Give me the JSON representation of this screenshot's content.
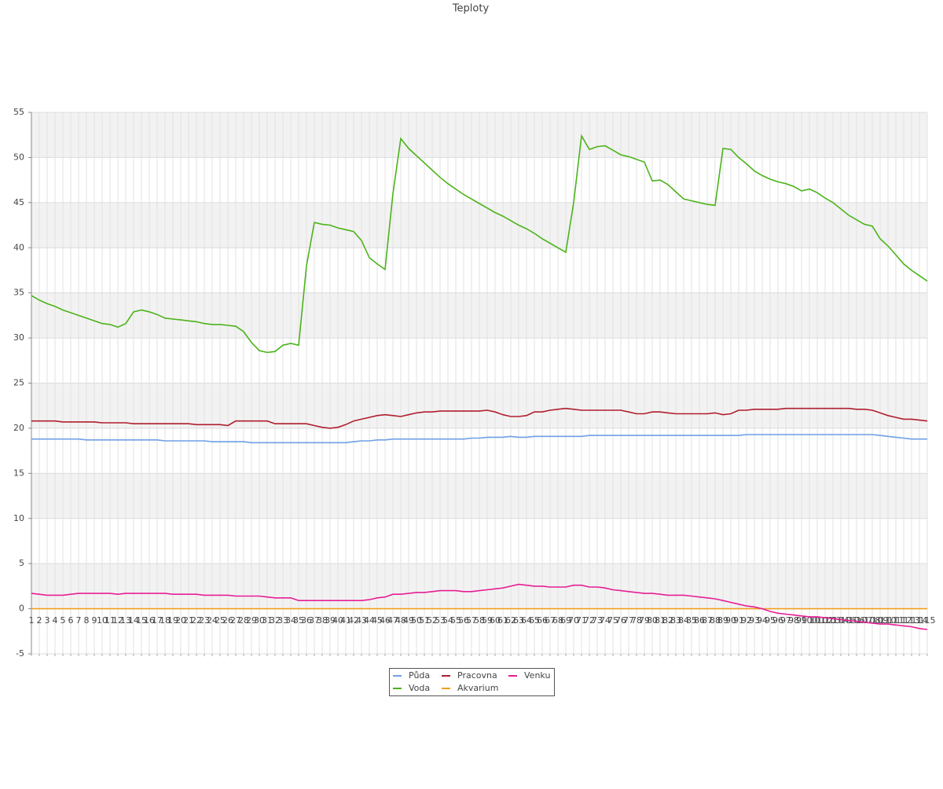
{
  "chart_data": {
    "type": "line",
    "title": "Teploty",
    "categories": [
      "1",
      "2",
      "3",
      "4",
      "5",
      "6",
      "7",
      "8",
      "9",
      "10",
      "11",
      "12",
      "13",
      "14",
      "15",
      "16",
      "17",
      "18",
      "19",
      "20",
      "21",
      "22",
      "23",
      "24",
      "25",
      "26",
      "27",
      "28",
      "29",
      "30",
      "31",
      "32",
      "33",
      "34",
      "35",
      "36",
      "37",
      "38",
      "39",
      "40",
      "41",
      "42",
      "43",
      "44",
      "45",
      "46",
      "47",
      "48",
      "49",
      "50",
      "51",
      "52",
      "53",
      "54",
      "55",
      "56",
      "57",
      "58",
      "59",
      "60",
      "61",
      "62",
      "63",
      "64",
      "65",
      "66",
      "67",
      "68",
      "69",
      "70",
      "71",
      "72",
      "73",
      "74",
      "75",
      "76",
      "77",
      "78",
      "79",
      "80",
      "81",
      "82",
      "83",
      "84",
      "85",
      "86",
      "87",
      "88",
      "89",
      "90",
      "91",
      "92",
      "93",
      "94",
      "95",
      "96",
      "97",
      "98",
      "99",
      "100",
      "101",
      "102",
      "103",
      "104",
      "105",
      "106",
      "107",
      "108",
      "109",
      "110",
      "111",
      "112",
      "113",
      "114",
      "115"
    ],
    "series": [
      {
        "name": "Půda",
        "color": "#6f9fe6",
        "values": [
          18.8,
          18.8,
          18.8,
          18.8,
          18.8,
          18.8,
          18.8,
          18.7,
          18.7,
          18.7,
          18.7,
          18.7,
          18.7,
          18.7,
          18.7,
          18.7,
          18.7,
          18.6,
          18.6,
          18.6,
          18.6,
          18.6,
          18.6,
          18.5,
          18.5,
          18.5,
          18.5,
          18.5,
          18.4,
          18.4,
          18.4,
          18.4,
          18.4,
          18.4,
          18.4,
          18.4,
          18.4,
          18.4,
          18.4,
          18.4,
          18.4,
          18.5,
          18.6,
          18.6,
          18.7,
          18.7,
          18.8,
          18.8,
          18.8,
          18.8,
          18.8,
          18.8,
          18.8,
          18.8,
          18.8,
          18.8,
          18.9,
          18.9,
          19.0,
          19.0,
          19.0,
          19.1,
          19.0,
          19.0,
          19.1,
          19.1,
          19.1,
          19.1,
          19.1,
          19.1,
          19.1,
          19.2,
          19.2,
          19.2,
          19.2,
          19.2,
          19.2,
          19.2,
          19.2,
          19.2,
          19.2,
          19.2,
          19.2,
          19.2,
          19.2,
          19.2,
          19.2,
          19.2,
          19.2,
          19.2,
          19.2,
          19.3,
          19.3,
          19.3,
          19.3,
          19.3,
          19.3,
          19.3,
          19.3,
          19.3,
          19.3,
          19.3,
          19.3,
          19.3,
          19.3,
          19.3,
          19.3,
          19.3,
          19.2,
          19.1,
          19.0,
          18.9,
          18.8,
          18.8,
          18.8
        ]
      },
      {
        "name": "Voda",
        "color": "#4cb31a",
        "values": [
          34.7,
          34.2,
          33.8,
          33.5,
          33.1,
          32.8,
          32.5,
          32.2,
          31.9,
          31.6,
          31.5,
          31.2,
          31.6,
          32.9,
          33.1,
          32.9,
          32.6,
          32.2,
          32.1,
          32.0,
          31.9,
          31.8,
          31.6,
          31.5,
          31.5,
          31.4,
          31.3,
          30.7,
          29.5,
          28.6,
          28.4,
          28.5,
          29.2,
          29.4,
          29.2,
          38,
          42.8,
          42.6,
          42.5,
          42.2,
          42.0,
          41.8,
          40.8,
          38.9,
          38.2,
          37.6,
          46,
          52.1,
          51,
          50.2,
          49.4,
          48.6,
          47.8,
          47.1,
          46.5,
          45.9,
          45.4,
          44.9,
          44.4,
          43.9,
          43.5,
          43.0,
          42.5,
          42.1,
          41.6,
          41.0,
          40.5,
          40.0,
          39.5,
          45,
          52.4,
          50.9,
          51.2,
          51.3,
          50.8,
          50.3,
          50.1,
          49.8,
          49.5,
          47.4,
          47.5,
          47.0,
          46.2,
          45.4,
          45.2,
          45.0,
          44.8,
          44.7,
          51.0,
          50.9,
          50.0,
          49.3,
          48.5,
          48.0,
          47.6,
          47.3,
          47.1,
          46.8,
          46.3,
          46.5,
          46.1,
          45.5,
          45.0,
          44.3,
          43.6,
          43.1,
          42.6,
          42.4,
          41.0,
          40.2,
          39.2,
          38.2,
          37.5,
          36.9,
          36.3
        ]
      },
      {
        "name": "Pracovna",
        "color": "#b01e2e",
        "values": [
          20.8,
          20.8,
          20.8,
          20.8,
          20.7,
          20.7,
          20.7,
          20.7,
          20.7,
          20.6,
          20.6,
          20.6,
          20.6,
          20.5,
          20.5,
          20.5,
          20.5,
          20.5,
          20.5,
          20.5,
          20.5,
          20.4,
          20.4,
          20.4,
          20.4,
          20.3,
          20.8,
          20.8,
          20.8,
          20.8,
          20.8,
          20.5,
          20.5,
          20.5,
          20.5,
          20.5,
          20.3,
          20.1,
          20.0,
          20.1,
          20.4,
          20.8,
          21.0,
          21.2,
          21.4,
          21.5,
          21.4,
          21.3,
          21.5,
          21.7,
          21.8,
          21.8,
          21.9,
          21.9,
          21.9,
          21.9,
          21.9,
          21.9,
          22.0,
          21.8,
          21.5,
          21.3,
          21.3,
          21.4,
          21.8,
          21.8,
          22.0,
          22.1,
          22.2,
          22.1,
          22.0,
          22.0,
          22.0,
          22.0,
          22.0,
          22.0,
          21.8,
          21.6,
          21.6,
          21.8,
          21.8,
          21.7,
          21.6,
          21.6,
          21.6,
          21.6,
          21.6,
          21.7,
          21.5,
          21.6,
          22.0,
          22.0,
          22.1,
          22.1,
          22.1,
          22.1,
          22.2,
          22.2,
          22.2,
          22.2,
          22.2,
          22.2,
          22.2,
          22.2,
          22.2,
          22.1,
          22.1,
          22.0,
          21.7,
          21.4,
          21.2,
          21.0,
          21.0,
          20.9,
          20.8
        ]
      },
      {
        "name": "Akvarium",
        "color": "#f0a020",
        "values": [
          0,
          0,
          0,
          0,
          0,
          0,
          0,
          0,
          0,
          0,
          0,
          0,
          0,
          0,
          0,
          0,
          0,
          0,
          0,
          0,
          0,
          0,
          0,
          0,
          0,
          0,
          0,
          0,
          0,
          0,
          0,
          0,
          0,
          0,
          0,
          0,
          0,
          0,
          0,
          0,
          0,
          0,
          0,
          0,
          0,
          0,
          0,
          0,
          0,
          0,
          0,
          0,
          0,
          0,
          0,
          0,
          0,
          0,
          0,
          0,
          0,
          0,
          0,
          0,
          0,
          0,
          0,
          0,
          0,
          0,
          0,
          0,
          0,
          0,
          0,
          0,
          0,
          0,
          0,
          0,
          0,
          0,
          0,
          0,
          0,
          0,
          0,
          0,
          0,
          0,
          0,
          0,
          0,
          0,
          0,
          0,
          0,
          0,
          0,
          0,
          0,
          0,
          0,
          0,
          0,
          0,
          0,
          0,
          0,
          0,
          0,
          0,
          0,
          0,
          0
        ]
      },
      {
        "name": "Venku",
        "color": "#e61e96",
        "values": [
          1.7,
          1.6,
          1.5,
          1.5,
          1.5,
          1.6,
          1.7,
          1.7,
          1.7,
          1.7,
          1.7,
          1.6,
          1.7,
          1.7,
          1.7,
          1.7,
          1.7,
          1.7,
          1.6,
          1.6,
          1.6,
          1.6,
          1.5,
          1.5,
          1.5,
          1.5,
          1.4,
          1.4,
          1.4,
          1.4,
          1.3,
          1.2,
          1.2,
          1.2,
          0.9,
          0.9,
          0.9,
          0.9,
          0.9,
          0.9,
          0.9,
          0.9,
          0.9,
          1.0,
          1.2,
          1.3,
          1.6,
          1.6,
          1.7,
          1.8,
          1.8,
          1.9,
          2.0,
          2.0,
          2.0,
          1.9,
          1.9,
          2.0,
          2.1,
          2.2,
          2.3,
          2.5,
          2.7,
          2.6,
          2.5,
          2.5,
          2.4,
          2.4,
          2.4,
          2.6,
          2.6,
          2.4,
          2.4,
          2.3,
          2.1,
          2.0,
          1.9,
          1.8,
          1.7,
          1.7,
          1.6,
          1.5,
          1.5,
          1.5,
          1.4,
          1.3,
          1.2,
          1.1,
          0.9,
          0.7,
          0.5,
          0.3,
          0.2,
          0.0,
          -0.3,
          -0.5,
          -0.6,
          -0.7,
          -0.8,
          -0.9,
          -0.9,
          -1.0,
          -1.1,
          -1.2,
          -1.3,
          -1.4,
          -1.5,
          -1.6,
          -1.7,
          -1.7,
          -1.8,
          -1.9,
          -2.0,
          -2.2,
          -2.3
        ]
      }
    ],
    "ylim": [
      -5,
      55
    ],
    "yticks": [
      -5,
      0,
      5,
      10,
      15,
      20,
      25,
      30,
      35,
      40,
      45,
      50,
      55
    ],
    "grid": true
  }
}
